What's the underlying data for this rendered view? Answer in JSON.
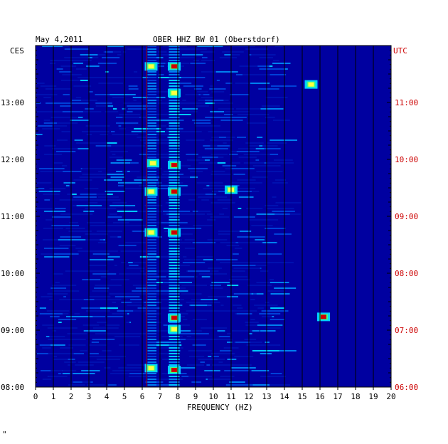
{
  "header": {
    "date": "May 4,2011",
    "station": "OBER HHZ BW 01 (Oberstdorf)",
    "left_tz": "CES",
    "right_tz": "UTC"
  },
  "footer": {
    "mark": "\""
  },
  "colors": {
    "background": "#0000a0",
    "low": "#0030c0",
    "mid": "#00c0ff",
    "high": "#ffff00",
    "peak": "#c00000",
    "grid": "#000000",
    "utc_label": "#cc0000"
  },
  "chart_data": {
    "type": "heatmap",
    "xlabel": "FREQUENCY (HZ)",
    "xlim": [
      0,
      20
    ],
    "x_ticks": [
      "0",
      "1",
      "2",
      "3",
      "4",
      "5",
      "6",
      "7",
      "8",
      "9",
      "10",
      "11",
      "12",
      "13",
      "14",
      "15",
      "16",
      "17",
      "18",
      "19",
      "20"
    ],
    "y_range_local": [
      "08:00",
      "14:00"
    ],
    "y_ticks_local": [
      "08:00",
      "09:00",
      "10:00",
      "11:00",
      "12:00",
      "13:00"
    ],
    "y_ticks_utc": [
      "06:00",
      "07:00",
      "08:00",
      "09:00",
      "10:00",
      "11:00"
    ],
    "grid": "vertical lines at each 1 Hz",
    "highlights": [
      {
        "freq_hz": 6.5,
        "time_local": "13:38",
        "level": "high"
      },
      {
        "freq_hz": 7.8,
        "time_local": "13:38",
        "level": "peak"
      },
      {
        "freq_hz": 7.8,
        "time_local": "13:10",
        "level": "high"
      },
      {
        "freq_hz": 15.5,
        "time_local": "13:19",
        "level": "high"
      },
      {
        "freq_hz": 6.6,
        "time_local": "11:56",
        "level": "high"
      },
      {
        "freq_hz": 7.8,
        "time_local": "11:54",
        "level": "peak"
      },
      {
        "freq_hz": 6.5,
        "time_local": "11:26",
        "level": "high"
      },
      {
        "freq_hz": 7.8,
        "time_local": "11:26",
        "level": "peak"
      },
      {
        "freq_hz": 11.0,
        "time_local": "11:28",
        "level": "high"
      },
      {
        "freq_hz": 7.8,
        "time_local": "10:43",
        "level": "peak"
      },
      {
        "freq_hz": 6.5,
        "time_local": "10:43",
        "level": "high"
      },
      {
        "freq_hz": 7.8,
        "time_local": "09:13",
        "level": "peak"
      },
      {
        "freq_hz": 16.2,
        "time_local": "09:14",
        "level": "peak"
      },
      {
        "freq_hz": 7.8,
        "time_local": "09:01",
        "level": "high"
      },
      {
        "freq_hz": 7.8,
        "time_local": "08:18",
        "level": "peak"
      },
      {
        "freq_hz": 6.5,
        "time_local": "08:20",
        "level": "high"
      }
    ]
  }
}
